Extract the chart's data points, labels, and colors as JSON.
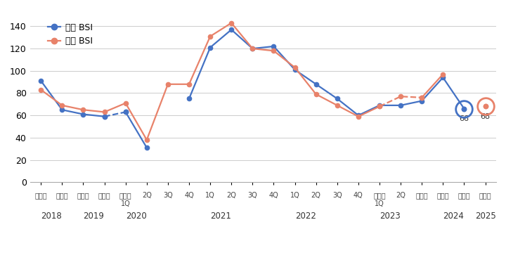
{
  "ylim": [
    0,
    150
  ],
  "yticks": [
    0,
    20,
    40,
    60,
    80,
    100,
    120,
    140
  ],
  "현황_values": [
    91,
    65,
    61,
    59,
    63,
    31,
    null,
    75,
    121,
    137,
    120,
    122,
    101,
    88,
    75,
    60,
    69,
    69,
    73,
    94,
    66,
    null
  ],
  "전망_values": [
    83,
    69,
    65,
    63,
    71,
    38,
    88,
    88,
    131,
    143,
    120,
    118,
    103,
    79,
    69,
    59,
    68,
    77,
    76,
    97,
    null,
    68
  ],
  "현황_color": "#4472C4",
  "전망_color": "#E8826A",
  "legend_현황": "현황 BSI",
  "legend_전망": "전망 BSI",
  "background_color": "#ffffff",
  "grid_color": "#cccccc",
  "n_ticks": 22,
  "xlim": [
    -0.5,
    21.5
  ],
  "tick_row1": [
    "상반기",
    "하반기",
    "상반기",
    "하반기",
    "상반기",
    "2Q",
    "3Q",
    "4Q",
    "1Q",
    "2Q",
    "3Q",
    "4Q",
    "1Q",
    "2Q",
    "3Q",
    "4Q",
    "상반기",
    "2Q",
    "하반기",
    "상반기",
    "하반기",
    "상반기"
  ],
  "tick_row2": [
    "",
    "",
    "",
    "",
    "1Q",
    "",
    "",
    "",
    "",
    "",
    "",
    "",
    "",
    "",
    "",
    "",
    "1Q",
    "",
    "",
    "",
    "",
    ""
  ],
  "tick_year": [
    "2018",
    "",
    "2019",
    "",
    "2020",
    "",
    "",
    "",
    "2021",
    "",
    "",
    "",
    "2022",
    "",
    "",
    "",
    "2023",
    "",
    "",
    "2024",
    "",
    "2025"
  ],
  "year_center": [
    0.5,
    2.5,
    4.5,
    8.5,
    12.5,
    16.5,
    19.5,
    21
  ],
  "year_labels": [
    "2018",
    "2019",
    "2020",
    "2021",
    "2022",
    "2023",
    "2024",
    "2025"
  ],
  "ann_현황_x": 20,
  "ann_현황_y": 66,
  "ann_전망_x": 21,
  "ann_전망_y": 68
}
